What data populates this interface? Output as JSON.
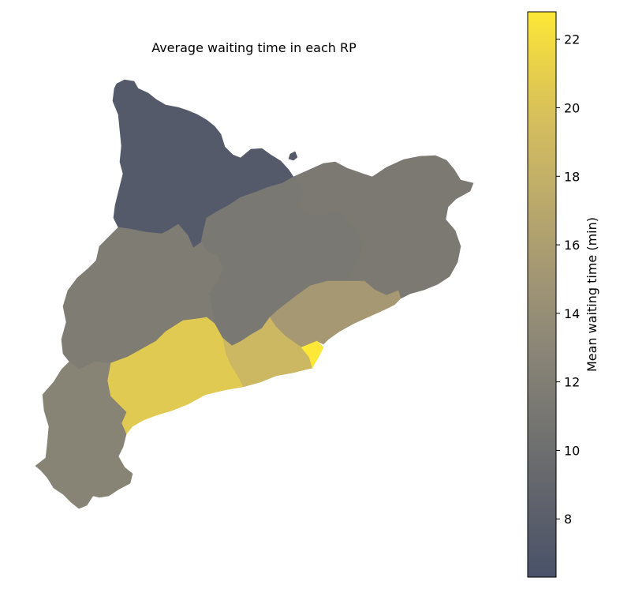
{
  "chart_data": {
    "type": "choropleth",
    "title": "Average waiting time in each RP",
    "colormap": "cividis",
    "colorbar": {
      "label": "Mean waiting time (min)",
      "vmin": 6.3,
      "vmax": 22.8,
      "ticks": [
        "8",
        "10",
        "12",
        "14",
        "16",
        "18",
        "20",
        "22"
      ]
    },
    "regions": [
      {
        "id": "northwest",
        "value": 7.4
      },
      {
        "id": "central",
        "value": 11.2
      },
      {
        "id": "northeast",
        "value": 11.4
      },
      {
        "id": "west",
        "value": 11.7
      },
      {
        "id": "southwest",
        "value": 12.6
      },
      {
        "id": "coast-north",
        "value": 15.3
      },
      {
        "id": "coast-central",
        "value": 18.8
      },
      {
        "id": "city",
        "value": 22.8
      },
      {
        "id": "coast-south",
        "value": 20.6
      }
    ]
  }
}
